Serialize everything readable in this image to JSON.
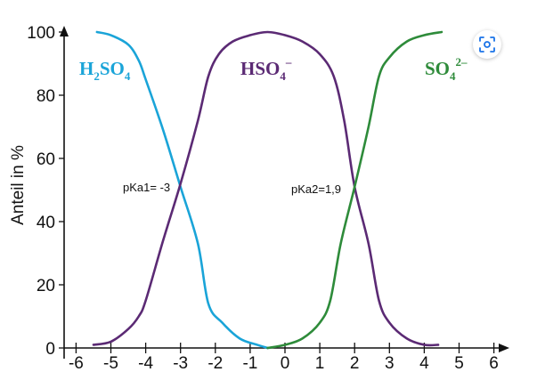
{
  "chart_data": {
    "type": "line",
    "ylabel": "Anteil in %",
    "xlabel": "",
    "xlim": [
      -6.3,
      6.4
    ],
    "ylim": [
      0,
      100
    ],
    "x_ticks": [
      -6,
      -5,
      -4,
      -3,
      -2,
      -1,
      0,
      1,
      2,
      3,
      4,
      5,
      6
    ],
    "y_ticks": [
      0,
      20,
      40,
      60,
      80,
      100
    ],
    "series": [
      {
        "label_main": "H",
        "label_sub1": "2",
        "label_mid": "SO",
        "label_sub2": "4",
        "label_sup": "",
        "color": "#1aa4d8",
        "points": [
          [
            -5.4,
            100
          ],
          [
            -5.0,
            99
          ],
          [
            -4.5,
            96
          ],
          [
            -4.2,
            91
          ],
          [
            -4.0,
            85
          ],
          [
            -3.5,
            69
          ],
          [
            -3.0,
            51
          ],
          [
            -2.5,
            33
          ],
          [
            -2.2,
            14
          ],
          [
            -1.8,
            8
          ],
          [
            -1.3,
            3
          ],
          [
            -0.8,
            1
          ],
          [
            -0.5,
            0
          ]
        ]
      },
      {
        "label_main": "HSO",
        "label_sub1": "",
        "label_mid": "",
        "label_sub2": "4",
        "label_sup": "–",
        "color": "#5b2a74",
        "points": [
          [
            -5.5,
            1
          ],
          [
            -5.0,
            2
          ],
          [
            -4.5,
            6
          ],
          [
            -4.2,
            10
          ],
          [
            -4.0,
            15
          ],
          [
            -3.5,
            34
          ],
          [
            -3.0,
            52
          ],
          [
            -2.5,
            72
          ],
          [
            -2.2,
            86
          ],
          [
            -1.9,
            93
          ],
          [
            -1.5,
            97
          ],
          [
            -1.0,
            99
          ],
          [
            -0.5,
            100
          ],
          [
            0.0,
            99
          ],
          [
            0.5,
            97
          ],
          [
            1.0,
            93
          ],
          [
            1.4,
            86
          ],
          [
            1.7,
            72
          ],
          [
            2.0,
            51
          ],
          [
            2.4,
            33
          ],
          [
            2.7,
            15
          ],
          [
            3.0,
            8
          ],
          [
            3.5,
            3
          ],
          [
            4.0,
            1
          ],
          [
            4.4,
            1
          ]
        ]
      },
      {
        "label_main": "SO",
        "label_sub1": "",
        "label_mid": "",
        "label_sub2": "4",
        "label_sup": "2–",
        "color": "#2e8b3a",
        "points": [
          [
            -0.5,
            0
          ],
          [
            0.0,
            1
          ],
          [
            0.5,
            3
          ],
          [
            1.0,
            8
          ],
          [
            1.3,
            15
          ],
          [
            1.6,
            33
          ],
          [
            2.0,
            51
          ],
          [
            2.4,
            70
          ],
          [
            2.7,
            86
          ],
          [
            3.0,
            92
          ],
          [
            3.5,
            97
          ],
          [
            4.0,
            99
          ],
          [
            4.5,
            100
          ]
        ]
      }
    ],
    "annotations": [
      {
        "text": "pKa1= -3",
        "x": -3.0,
        "y": 51
      },
      {
        "text": "pKa2=1,9",
        "x": 2.0,
        "y": 51
      }
    ]
  },
  "toolbar": {
    "lens_icon": "visual-search-icon"
  }
}
